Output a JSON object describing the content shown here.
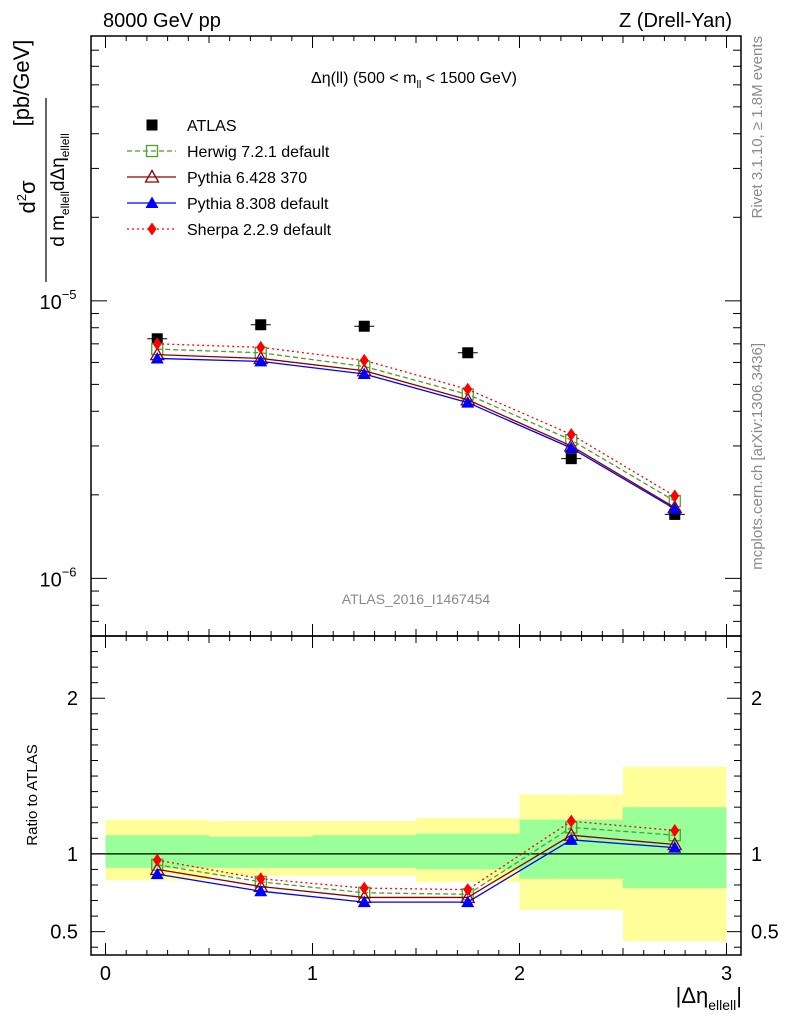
{
  "header": {
    "left": "8000 GeV pp",
    "right": "Z (Drell-Yan)"
  },
  "side_labels": {
    "rivet": "Rivet 3.1.10, ≥ 1.8M events",
    "mcplots": "mcplots.cern.ch [arXiv:1306.3436]"
  },
  "chart_data": [
    {
      "type": "scatter",
      "panel": "main",
      "title": {
        "prefix": "Δη(ll) (500 < m",
        "subscript": "ll",
        "suffix": " < 1500 GeV)"
      },
      "analysis_label": "ATLAS_2016_I1467454",
      "ylabel_parts": {
        "num_d": "d",
        "num_sup": "2",
        "num_sigma": "σ",
        "den1": "d m",
        "den1_sub": "ellell",
        "den2": "dΔη",
        "den2_sub": "ellell",
        "unit": "[pb/GeV]"
      },
      "yscale": "log",
      "xlim": [
        -0.07,
        3.07
      ],
      "ylim": [
        6.2e-07,
        9e-05
      ],
      "y_ticklabels": [
        {
          "mant": "10",
          "exp": "−5",
          "value": 1e-05
        },
        {
          "mant": "10",
          "exp": "−6",
          "value": 1e-06
        }
      ],
      "legend_position": "top-left",
      "x": [
        0.25,
        0.75,
        1.25,
        1.75,
        2.25,
        2.75
      ],
      "series": [
        {
          "name": "ATLAS",
          "color": "#000000",
          "marker": "square-filled",
          "line": "none",
          "values": [
            7.3e-06,
            8.2e-06,
            8.1e-06,
            6.5e-06,
            2.7e-06,
            1.7e-06
          ]
        },
        {
          "name": "Herwig 7.2.1 default",
          "color": "#4ba12b",
          "marker": "square-open",
          "line": "dashed",
          "values": [
            6.7e-06,
            6.5e-06,
            5.8e-06,
            4.6e-06,
            3.15e-06,
            1.9e-06
          ]
        },
        {
          "name": "Pythia 6.428 370",
          "color": "#8b0000",
          "marker": "triangle-open",
          "line": "solid",
          "values": [
            6.4e-06,
            6.2e-06,
            5.6e-06,
            4.4e-06,
            3e-06,
            1.8e-06
          ]
        },
        {
          "name": "Pythia 8.308 default",
          "color": "#0000ff",
          "marker": "triangle-filled",
          "line": "solid",
          "values": [
            6.2e-06,
            6.05e-06,
            5.45e-06,
            4.3e-06,
            2.95e-06,
            1.78e-06
          ]
        },
        {
          "name": "Sherpa 2.2.9 default",
          "color": "#ff0000",
          "marker": "diamond-filled",
          "line": "dotted",
          "values": [
            7e-06,
            6.8e-06,
            6.1e-06,
            4.8e-06,
            3.3e-06,
            1.98e-06
          ]
        }
      ]
    },
    {
      "type": "line",
      "panel": "ratio",
      "ylabel": "Ratio to ATLAS",
      "xlabel_parts": {
        "main": "|Δη",
        "sub": "ellell",
        "close": "|"
      },
      "xlim": [
        -0.07,
        3.07
      ],
      "ylim": [
        0.35,
        2.4
      ],
      "x_ticks": [
        0,
        1,
        2,
        3
      ],
      "x_ticklabels": [
        "0",
        "1",
        "2",
        "3"
      ],
      "y_ticks": [
        0.5,
        1,
        2
      ],
      "y_ticklabels": [
        "0.5",
        "1",
        "2"
      ],
      "reference_line": 1,
      "bands": [
        {
          "x0": 0,
          "x1": 0.5,
          "yellow": [
            0.83,
            1.22
          ],
          "green": [
            0.91,
            1.12
          ]
        },
        {
          "x0": 0.5,
          "x1": 1.0,
          "yellow": [
            0.86,
            1.21
          ],
          "green": [
            0.91,
            1.11
          ]
        },
        {
          "x0": 1.0,
          "x1": 1.5,
          "yellow": [
            0.86,
            1.21
          ],
          "green": [
            0.91,
            1.12
          ]
        },
        {
          "x0": 1.5,
          "x1": 2.0,
          "yellow": [
            0.82,
            1.23
          ],
          "green": [
            0.9,
            1.13
          ]
        },
        {
          "x0": 2.0,
          "x1": 2.5,
          "yellow": [
            0.64,
            1.38
          ],
          "green": [
            0.84,
            1.22
          ]
        },
        {
          "x0": 2.5,
          "x1": 3.0,
          "yellow": [
            0.44,
            1.56
          ],
          "green": [
            0.78,
            1.3
          ]
        }
      ],
      "x": [
        0.25,
        0.75,
        1.25,
        1.75,
        2.25,
        2.75
      ],
      "series": [
        {
          "name": "Herwig 7.2.1 default",
          "color": "#4ba12b",
          "marker": "square-open",
          "line": "dashed",
          "values": [
            0.93,
            0.82,
            0.75,
            0.74,
            1.17,
            1.12
          ]
        },
        {
          "name": "Pythia 6.428 370",
          "color": "#8b0000",
          "marker": "triangle-open",
          "line": "solid",
          "values": [
            0.9,
            0.79,
            0.72,
            0.72,
            1.12,
            1.06
          ]
        },
        {
          "name": "Pythia 8.308 default",
          "color": "#0000ff",
          "marker": "triangle-filled",
          "line": "solid",
          "values": [
            0.87,
            0.76,
            0.69,
            0.69,
            1.09,
            1.04
          ]
        },
        {
          "name": "Sherpa 2.2.9 default",
          "color": "#ff0000",
          "marker": "diamond-filled",
          "line": "dotted",
          "values": [
            0.96,
            0.84,
            0.78,
            0.77,
            1.21,
            1.15
          ]
        }
      ]
    }
  ]
}
